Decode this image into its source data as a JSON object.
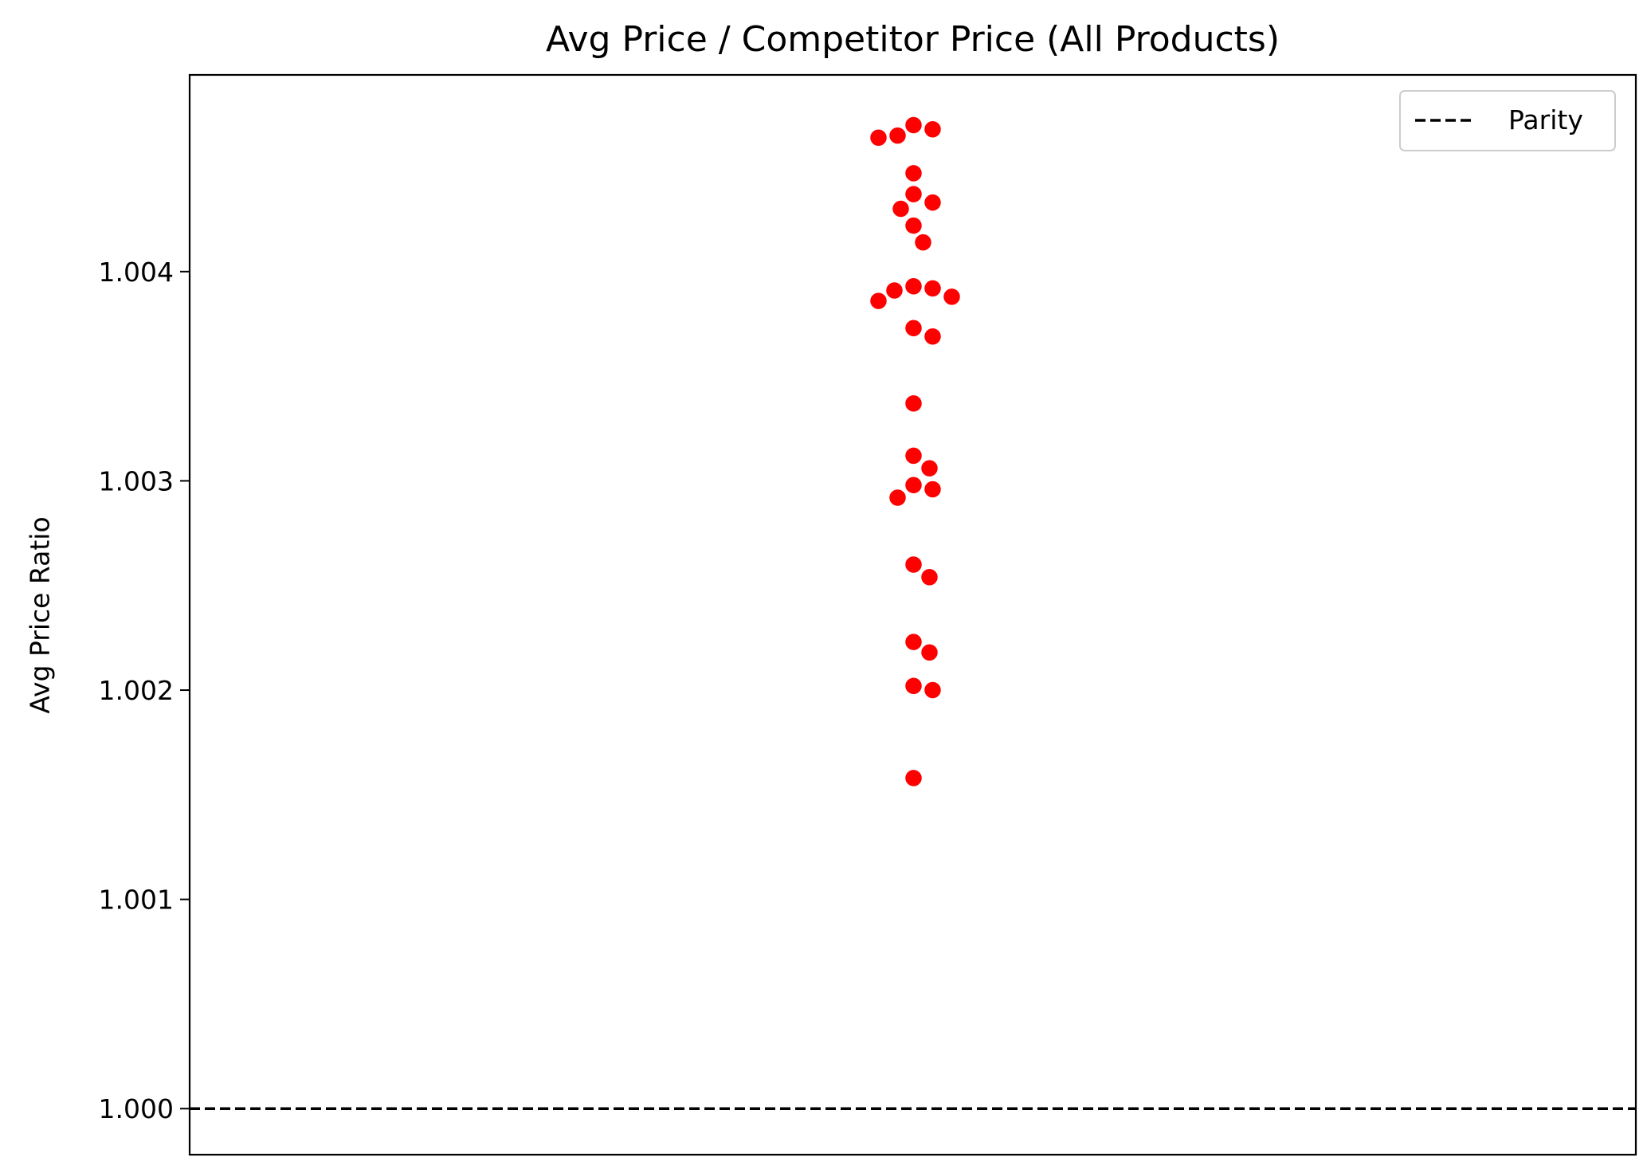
{
  "chart_data": {
    "type": "scatter",
    "title": "Avg Price / Competitor Price (All Products)",
    "xlabel": "",
    "ylabel": "Avg Price Ratio",
    "ylim": [
      0.99978,
      1.00494
    ],
    "yticks": [
      1.0,
      1.001,
      1.002,
      1.003,
      1.004
    ],
    "ytick_labels": [
      "1.000",
      "1.001",
      "1.002",
      "1.003",
      "1.004"
    ],
    "x_ticks_visible": false,
    "grid": false,
    "point_color": "#ff0000",
    "values": [
      1.0047,
      1.00465,
      1.00464,
      1.00468,
      1.00447,
      1.00433,
      1.00437,
      1.0043,
      1.00422,
      1.00414,
      1.00393,
      1.00388,
      1.00386,
      1.00391,
      1.00392,
      1.00373,
      1.00369,
      1.00337,
      1.00312,
      1.00306,
      1.00296,
      1.00298,
      1.00292,
      1.0026,
      1.00254,
      1.00223,
      1.00218,
      1.00202,
      1.002,
      1.00158
    ],
    "reference_line": {
      "y": 1.0,
      "style": "dashed",
      "color": "#000000",
      "label": "Parity"
    },
    "legend": {
      "placement": "top-right",
      "entries": [
        {
          "label": "Parity",
          "style": "dashed",
          "color": "#000000"
        }
      ]
    }
  }
}
